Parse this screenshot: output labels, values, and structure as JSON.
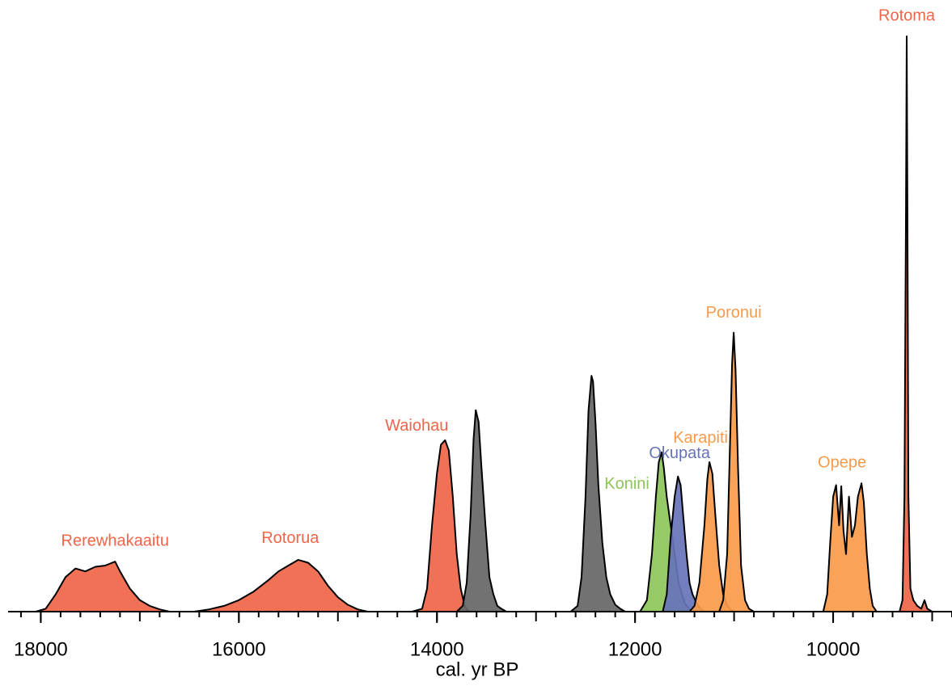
{
  "chart_data": {
    "type": "area",
    "x_label": "cal. yr BP",
    "xlim": [
      18330,
      8800
    ],
    "ylim": [
      0,
      1
    ],
    "xticks": [
      18000,
      16000,
      14000,
      12000,
      10000
    ],
    "xminorticks": [
      18200,
      18000,
      17800,
      17600,
      17400,
      17200,
      17000,
      16800,
      16600,
      16400,
      16200,
      16000,
      15800,
      15600,
      15400,
      15200,
      15000,
      14800,
      14600,
      14400,
      14200,
      14000,
      13800,
      13600,
      13400,
      13200,
      13000,
      12800,
      12600,
      12400,
      12200,
      12000,
      11800,
      11600,
      11400,
      11200,
      11000,
      10800,
      10600,
      10400,
      10200,
      10000,
      9800,
      9600,
      9400,
      9200,
      9000,
      8800
    ],
    "series": [
      {
        "name": "Rerewhakaaitu",
        "color": "#ef6548",
        "x": [
          18050,
          17950,
          17850,
          17750,
          17650,
          17550,
          17450,
          17350,
          17250,
          17200,
          17100,
          17000,
          16900,
          16800,
          16700
        ],
        "values": [
          0,
          0.005,
          0.03,
          0.06,
          0.075,
          0.07,
          0.078,
          0.08,
          0.087,
          0.07,
          0.04,
          0.02,
          0.01,
          0.004,
          0
        ]
      },
      {
        "name": "Rotorua",
        "color": "#ef6548",
        "x": [
          16450,
          16300,
          16150,
          16000,
          15850,
          15700,
          15600,
          15500,
          15400,
          15300,
          15200,
          15100,
          15000,
          14900,
          14800,
          14700
        ],
        "values": [
          0,
          0.004,
          0.01,
          0.02,
          0.035,
          0.055,
          0.07,
          0.08,
          0.09,
          0.085,
          0.07,
          0.045,
          0.025,
          0.012,
          0.004,
          0
        ]
      },
      {
        "name": "Waiohau",
        "color": "#ef6548",
        "x": [
          14250,
          14150,
          14100,
          14050,
          14000,
          13960,
          13918,
          13880,
          13840,
          13800,
          13760,
          13720,
          13680
        ],
        "values": [
          0,
          0.005,
          0.04,
          0.15,
          0.24,
          0.29,
          0.298,
          0.28,
          0.2,
          0.1,
          0.04,
          0.01,
          0
        ]
      },
      {
        "color": "#666666",
        "x": [
          13800,
          13740,
          13700,
          13660,
          13630,
          13608,
          13580,
          13550,
          13510,
          13470,
          13430,
          13390,
          13350,
          13300
        ],
        "values": [
          0,
          0.01,
          0.05,
          0.17,
          0.3,
          0.35,
          0.33,
          0.25,
          0.15,
          0.06,
          0.03,
          0.01,
          0.005,
          0
        ]
      },
      {
        "color": "#666666",
        "x": [
          12650,
          12580,
          12540,
          12500,
          12470,
          12440,
          12424,
          12400,
          12370,
          12330,
          12290,
          12250,
          12200,
          12150,
          12100
        ],
        "values": [
          0,
          0.01,
          0.06,
          0.2,
          0.35,
          0.41,
          0.4,
          0.33,
          0.22,
          0.12,
          0.06,
          0.03,
          0.012,
          0.005,
          0
        ]
      },
      {
        "name": "Konini",
        "color": "#8dc55a",
        "x": [
          11950,
          11880,
          11830,
          11790,
          11760,
          11731,
          11710,
          11680,
          11640,
          11600,
          11560,
          11500,
          11450,
          11400
        ],
        "values": [
          0,
          0.02,
          0.1,
          0.2,
          0.26,
          0.277,
          0.25,
          0.2,
          0.15,
          0.1,
          0.05,
          0.015,
          0.004,
          0
        ]
      },
      {
        "name": "Okupata",
        "color": "#6673b9",
        "x": [
          11720,
          11680,
          11640,
          11600,
          11567,
          11540,
          11510,
          11480,
          11450,
          11420,
          11380,
          11340,
          11300
        ],
        "values": [
          0,
          0.03,
          0.13,
          0.2,
          0.235,
          0.22,
          0.16,
          0.1,
          0.05,
          0.03,
          0.015,
          0.005,
          0
        ]
      },
      {
        "name": "Karapiti",
        "color": "#f89a4a",
        "x": [
          11450,
          11400,
          11350,
          11300,
          11270,
          11249,
          11220,
          11190,
          11150,
          11110,
          11070,
          11030,
          10990
        ],
        "values": [
          0,
          0.01,
          0.05,
          0.15,
          0.23,
          0.26,
          0.24,
          0.17,
          0.08,
          0.03,
          0.01,
          0.003,
          0
        ]
      },
      {
        "name": "Poronui",
        "color": "#f89a4a",
        "x": [
          11150,
          11110,
          11070,
          11040,
          11020,
          11004,
          10985,
          10960,
          10930,
          10890,
          10850,
          10800
        ],
        "values": [
          0,
          0.02,
          0.1,
          0.3,
          0.43,
          0.485,
          0.42,
          0.25,
          0.08,
          0.02,
          0.005,
          0
        ]
      },
      {
        "name": "Opepe",
        "color": "#f89a4a",
        "x": [
          10100,
          10060,
          10030,
          10000,
          9970,
          9940,
          9918,
          9895,
          9870,
          9840,
          9810,
          9780,
          9750,
          9714,
          9690,
          9660,
          9630,
          9600,
          9560
        ],
        "values": [
          0,
          0.03,
          0.12,
          0.2,
          0.22,
          0.15,
          0.218,
          0.14,
          0.1,
          0.2,
          0.13,
          0.15,
          0.2,
          0.223,
          0.19,
          0.1,
          0.04,
          0.01,
          0
        ]
      },
      {
        "name": "Rotoma",
        "color": "#ef6548",
        "x": [
          9330,
          9300,
          9280,
          9265,
          9257,
          9250,
          9240,
          9220,
          9190,
          9150,
          9110,
          9078,
          9050,
          9000
        ],
        "values": [
          0,
          0.02,
          0.2,
          0.7,
          1.0,
          0.7,
          0.2,
          0.04,
          0.02,
          0.01,
          0.005,
          0.02,
          0.005,
          0
        ]
      }
    ]
  }
}
